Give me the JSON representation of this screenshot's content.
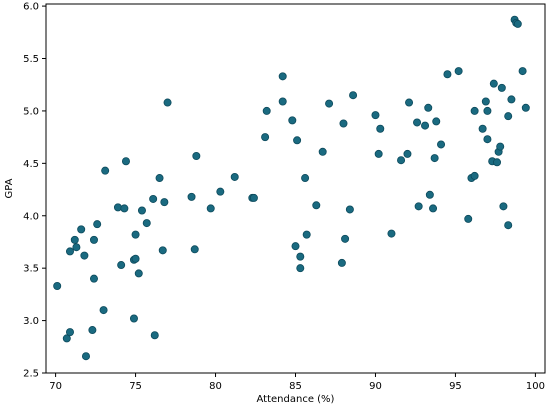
{
  "chart_data": {
    "type": "scatter",
    "title": "",
    "xlabel": "Attendance (%)",
    "ylabel": "GPA",
    "xlim": [
      69.4,
      100.6
    ],
    "ylim": [
      2.5,
      6.02
    ],
    "xticks": [
      70,
      75,
      80,
      85,
      90,
      95,
      100
    ],
    "yticks": [
      2.5,
      3.0,
      3.5,
      4.0,
      4.5,
      5.0,
      5.5,
      6.0
    ],
    "xtick_labels": [
      "70",
      "75",
      "80",
      "85",
      "90",
      "95",
      "100"
    ],
    "ytick_labels": [
      "2.5",
      "3.0",
      "3.5",
      "4.0",
      "4.5",
      "5.0",
      "5.5",
      "6.0"
    ],
    "grid": false,
    "marker_color": "#1a6a80",
    "marker_edge_color": "#0d4a5c",
    "points": [
      [
        70.1,
        3.33
      ],
      [
        70.7,
        2.83
      ],
      [
        70.9,
        2.89
      ],
      [
        70.9,
        3.66
      ],
      [
        71.2,
        3.77
      ],
      [
        71.3,
        3.7
      ],
      [
        71.6,
        3.87
      ],
      [
        71.8,
        3.62
      ],
      [
        71.9,
        2.66
      ],
      [
        72.3,
        2.91
      ],
      [
        72.4,
        3.4
      ],
      [
        72.4,
        3.77
      ],
      [
        72.6,
        3.92
      ],
      [
        73.0,
        3.1
      ],
      [
        73.1,
        4.43
      ],
      [
        73.9,
        4.08
      ],
      [
        74.1,
        3.53
      ],
      [
        74.3,
        4.07
      ],
      [
        74.4,
        4.52
      ],
      [
        74.9,
        3.02
      ],
      [
        74.9,
        3.58
      ],
      [
        75.0,
        3.59
      ],
      [
        75.0,
        3.82
      ],
      [
        75.2,
        3.45
      ],
      [
        75.4,
        4.05
      ],
      [
        75.7,
        3.93
      ],
      [
        76.1,
        4.16
      ],
      [
        76.2,
        2.86
      ],
      [
        76.5,
        4.36
      ],
      [
        76.7,
        3.67
      ],
      [
        76.8,
        4.13
      ],
      [
        77.0,
        5.08
      ],
      [
        78.5,
        4.18
      ],
      [
        78.7,
        3.68
      ],
      [
        78.8,
        4.57
      ],
      [
        79.7,
        4.07
      ],
      [
        80.3,
        4.23
      ],
      [
        81.2,
        4.37
      ],
      [
        82.3,
        4.17
      ],
      [
        82.4,
        4.17
      ],
      [
        83.1,
        4.75
      ],
      [
        83.2,
        5.0
      ],
      [
        84.2,
        5.33
      ],
      [
        84.2,
        5.09
      ],
      [
        84.8,
        4.91
      ],
      [
        85.0,
        3.71
      ],
      [
        85.1,
        4.72
      ],
      [
        85.3,
        3.5
      ],
      [
        85.3,
        3.61
      ],
      [
        85.6,
        4.36
      ],
      [
        85.7,
        3.82
      ],
      [
        86.3,
        4.1
      ],
      [
        86.7,
        4.61
      ],
      [
        87.1,
        5.07
      ],
      [
        87.9,
        3.55
      ],
      [
        88.0,
        4.88
      ],
      [
        88.1,
        3.78
      ],
      [
        88.4,
        4.06
      ],
      [
        88.6,
        5.15
      ],
      [
        90.0,
        4.96
      ],
      [
        90.2,
        4.59
      ],
      [
        90.3,
        4.83
      ],
      [
        91.0,
        3.83
      ],
      [
        91.6,
        4.53
      ],
      [
        92.0,
        4.59
      ],
      [
        92.1,
        5.08
      ],
      [
        92.6,
        4.89
      ],
      [
        92.7,
        4.09
      ],
      [
        93.1,
        4.86
      ],
      [
        93.3,
        5.03
      ],
      [
        93.4,
        4.2
      ],
      [
        93.6,
        4.07
      ],
      [
        93.7,
        4.55
      ],
      [
        93.8,
        4.9
      ],
      [
        94.1,
        4.68
      ],
      [
        94.5,
        5.35
      ],
      [
        95.2,
        5.38
      ],
      [
        95.8,
        3.97
      ],
      [
        96.0,
        4.36
      ],
      [
        96.2,
        4.38
      ],
      [
        96.2,
        5.0
      ],
      [
        96.7,
        4.83
      ],
      [
        96.9,
        5.09
      ],
      [
        97.0,
        4.73
      ],
      [
        97.0,
        5.0
      ],
      [
        97.3,
        4.52
      ],
      [
        97.4,
        5.26
      ],
      [
        97.6,
        4.51
      ],
      [
        97.7,
        4.61
      ],
      [
        97.8,
        4.66
      ],
      [
        97.9,
        5.22
      ],
      [
        98.0,
        4.09
      ],
      [
        98.3,
        4.95
      ],
      [
        98.3,
        3.91
      ],
      [
        98.5,
        5.11
      ],
      [
        98.7,
        5.87
      ],
      [
        98.8,
        5.84
      ],
      [
        98.9,
        5.83
      ],
      [
        99.2,
        5.38
      ],
      [
        99.4,
        5.03
      ]
    ]
  }
}
